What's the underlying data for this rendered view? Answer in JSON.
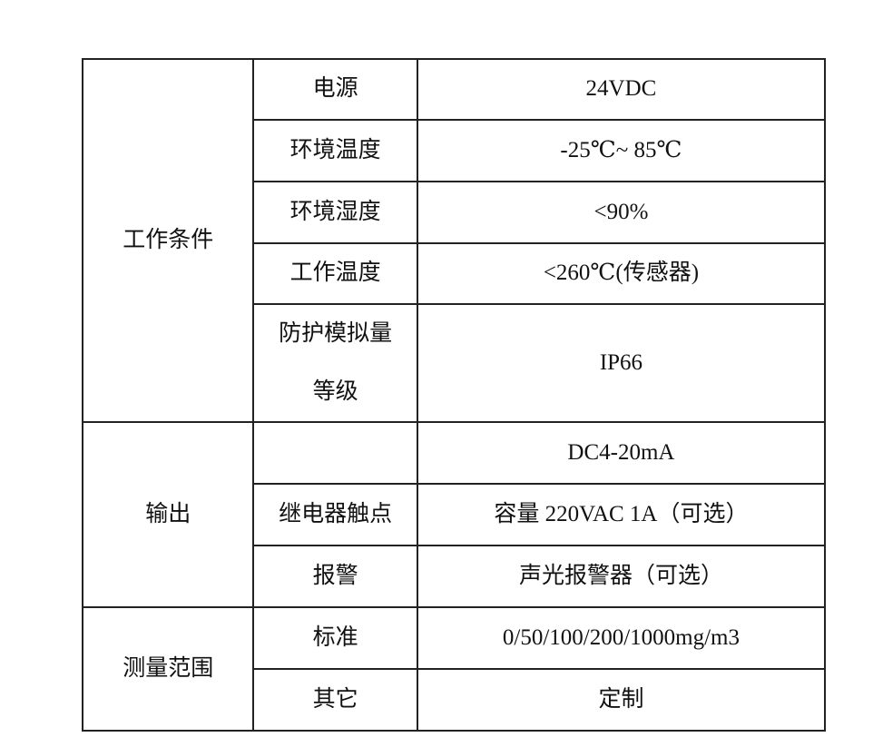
{
  "table": {
    "groups": [
      {
        "label": "工作条件",
        "rows": [
          {
            "param": "电源",
            "value": "24VDC"
          },
          {
            "param": "环境温度",
            "value": "-25℃~ 85℃"
          },
          {
            "param": "环境湿度",
            "value": "<90%"
          },
          {
            "param": "工作温度",
            "value": "<260℃(传感器)"
          },
          {
            "param_line1": "防护模拟量",
            "param_line2": "等级",
            "value": "IP66"
          }
        ]
      },
      {
        "label": "输出",
        "rows": [
          {
            "param": "",
            "value": "DC4-20mA"
          },
          {
            "param": "继电器触点",
            "value": "容量 220VAC 1A（可选）"
          },
          {
            "param": "报警",
            "value": "声光报警器（可选）"
          }
        ]
      },
      {
        "label": "测量范围",
        "rows": [
          {
            "param": "标准",
            "value": "0/50/100/200/1000mg/m3"
          },
          {
            "param": "其它",
            "value": "定制"
          }
        ]
      }
    ]
  }
}
